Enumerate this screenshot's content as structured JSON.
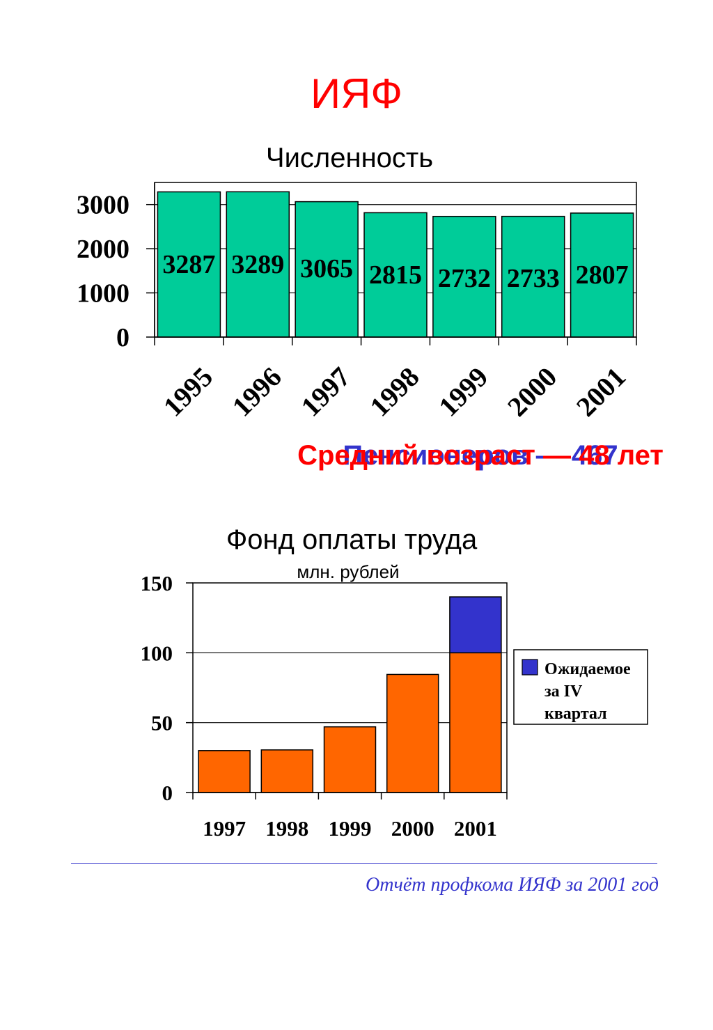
{
  "page": {
    "title": "ИЯФ",
    "pensioners_line": "Пенсионеров — 467",
    "avg_age_line": "Средний возраст — 48 лет",
    "footer": "Отчёт профкома ИЯФ за 2001 год"
  },
  "colors": {
    "title": "#ff0000",
    "bars1": "#00cc99",
    "bars2": "#ff6600",
    "expected": "#3333cc",
    "footer": "#3333cc"
  },
  "chart_data": [
    {
      "type": "bar",
      "title": "Численность",
      "categories": [
        "1995",
        "1996",
        "1997",
        "1998",
        "1999",
        "2000",
        "2001"
      ],
      "values": [
        3287,
        3289,
        3065,
        2815,
        2732,
        2733,
        2807
      ],
      "ylim": [
        0,
        3500
      ],
      "yticks": [
        "3000",
        "2000",
        "1000",
        "0"
      ],
      "grid": true,
      "data_labels": true
    },
    {
      "type": "bar",
      "stacked": true,
      "title": "Фонд оплаты труда",
      "subtitle": "млн. рублей",
      "categories": [
        "1997",
        "1998",
        "1999",
        "2000",
        "2001"
      ],
      "series": [
        {
          "values": [
            30,
            30.5,
            47,
            84.5,
            100
          ]
        },
        {
          "name": "Ожидаемое за IV квартал",
          "values": [
            0,
            0,
            0,
            0,
            40
          ]
        }
      ],
      "ylim": [
        0,
        150
      ],
      "yticks": [
        "150",
        "100",
        "50",
        "0"
      ],
      "grid": true,
      "legend": "right"
    }
  ]
}
